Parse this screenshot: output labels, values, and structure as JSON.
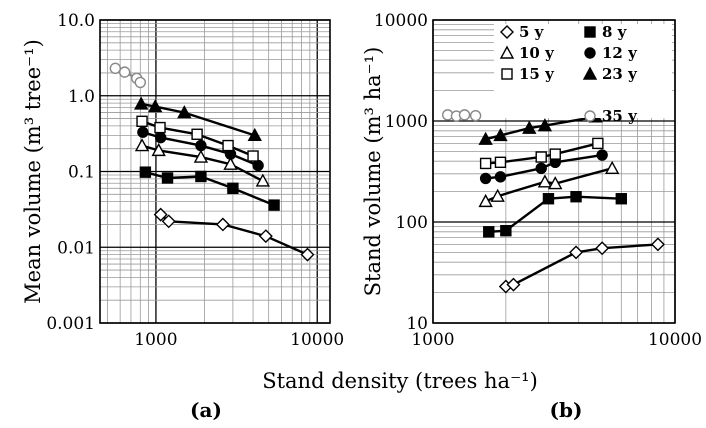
{
  "figure": {
    "shared_xlabel": "Stand density  (trees  ha⁻¹)"
  },
  "chart_data": [
    {
      "type": "line",
      "panel_label": "(a)",
      "ylabel": "Mean volume (m³ tree⁻¹)",
      "xlabel": "Stand density (trees ha⁻¹)",
      "x_scale": "log",
      "y_scale": "log",
      "xlim": [
        450,
        12000
      ],
      "ylim": [
        0.001,
        10
      ],
      "xtick_labels": [
        "1000",
        "10000"
      ],
      "ytick_labels": [
        "0.001",
        "0.01",
        "0.1",
        "1.0",
        "10.0"
      ],
      "series": [
        {
          "name": "5 y",
          "marker": "diamond-open",
          "color": "#000000",
          "x": [
            1070,
            1200,
            2600,
            4800,
            8700
          ],
          "y": [
            0.027,
            0.022,
            0.02,
            0.014,
            0.008
          ]
        },
        {
          "name": "8 y",
          "marker": "square-filled",
          "color": "#000000",
          "x": [
            860,
            1180,
            1900,
            3000,
            5400
          ],
          "y": [
            0.098,
            0.082,
            0.086,
            0.06,
            0.036
          ]
        },
        {
          "name": "10 y",
          "marker": "triangle-open",
          "color": "#000000",
          "x": [
            820,
            1040,
            1900,
            2900,
            4600
          ],
          "y": [
            0.22,
            0.19,
            0.155,
            0.125,
            0.075
          ]
        },
        {
          "name": "12 y",
          "marker": "circle-filled",
          "color": "#000000",
          "x": [
            830,
            1070,
            1900,
            2900,
            4300
          ],
          "y": [
            0.33,
            0.28,
            0.22,
            0.17,
            0.12
          ]
        },
        {
          "name": "15 y",
          "marker": "square-open",
          "color": "#000000",
          "x": [
            820,
            1060,
            1800,
            2800,
            4000
          ],
          "y": [
            0.46,
            0.38,
            0.31,
            0.22,
            0.16
          ]
        },
        {
          "name": "23 y",
          "marker": "triangle-filled",
          "color": "#000000",
          "x": [
            810,
            990,
            1500,
            4100
          ],
          "y": [
            0.78,
            0.72,
            0.6,
            0.3
          ]
        },
        {
          "name": "35 y",
          "marker": "circle-open",
          "color": "#888888",
          "x": [
            560,
            640,
            760,
            800
          ],
          "y": [
            2.3,
            2.05,
            1.7,
            1.5
          ]
        }
      ]
    },
    {
      "type": "line",
      "panel_label": "(b)",
      "ylabel": "Stand volume (m³ ha⁻¹)",
      "xlabel": "Stand density (trees ha⁻¹)",
      "x_scale": "log",
      "y_scale": "log",
      "xlim": [
        1000,
        10000
      ],
      "ylim": [
        10,
        10000
      ],
      "xtick_labels": [
        "1000",
        "10000"
      ],
      "ytick_labels": [
        "10",
        "100",
        "1000",
        "10000"
      ],
      "legend": {
        "placement": "top-right",
        "entries": [
          "5 y",
          "8 y",
          "10 y",
          "12 y",
          "15 y",
          "23 y",
          "35 y"
        ]
      },
      "series": [
        {
          "name": "5 y",
          "marker": "diamond-open",
          "color": "#000000",
          "x": [
            2000,
            2150,
            3900,
            5000,
            8500
          ],
          "y": [
            23,
            24,
            50,
            55,
            60
          ]
        },
        {
          "name": "8 y",
          "marker": "square-filled",
          "color": "#000000",
          "x": [
            1700,
            2000,
            3000,
            3900,
            6000
          ],
          "y": [
            80,
            82,
            170,
            178,
            170
          ]
        },
        {
          "name": "10 y",
          "marker": "triangle-open",
          "color": "#000000",
          "x": [
            1650,
            1850,
            2900,
            3200,
            5500
          ],
          "y": [
            160,
            180,
            250,
            240,
            340
          ]
        },
        {
          "name": "12 y",
          "marker": "circle-filled",
          "color": "#000000",
          "x": [
            1650,
            1900,
            2800,
            3200,
            5000
          ],
          "y": [
            270,
            280,
            340,
            390,
            460
          ]
        },
        {
          "name": "15 y",
          "marker": "square-open",
          "color": "#000000",
          "x": [
            1650,
            1900,
            2800,
            3200,
            4800
          ],
          "y": [
            380,
            390,
            440,
            470,
            600
          ]
        },
        {
          "name": "23 y",
          "marker": "triangle-filled",
          "color": "#000000",
          "x": [
            1650,
            1900,
            2500,
            2900,
            4700
          ],
          "y": [
            660,
            720,
            850,
            900,
            1100
          ]
        },
        {
          "name": "35 y",
          "marker": "circle-open",
          "color": "#888888",
          "x": [
            1150,
            1250,
            1350,
            1500
          ],
          "y": [
            1150,
            1120,
            1150,
            1130
          ]
        }
      ]
    }
  ]
}
